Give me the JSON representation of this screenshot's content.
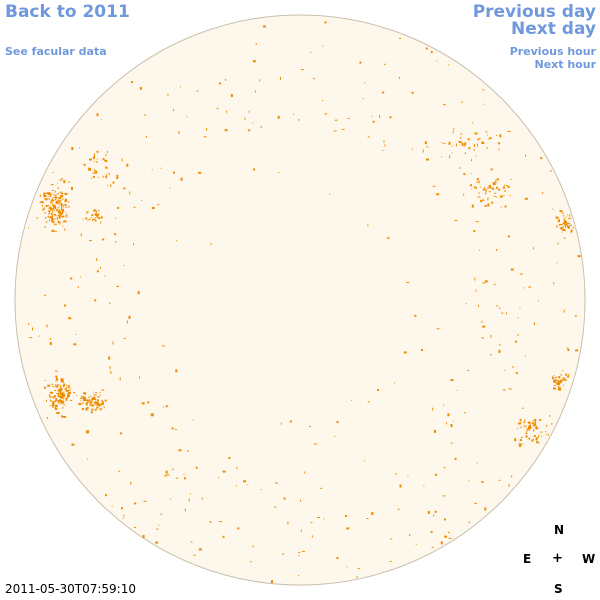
{
  "nav": {
    "back_label": "Back to 2011",
    "facular_label": "See facular data",
    "prev_day_label": "Previous day",
    "next_day_label": "Next day",
    "prev_hour_label": "Previous hour",
    "next_hour_label": "Next hour"
  },
  "compass": {
    "north": "N",
    "east": "E",
    "center": "+",
    "west": "W",
    "south": "S"
  },
  "timestamp": "2011-05-30T07:59:10",
  "colors": {
    "link": "#6f99dc",
    "disk_fill": "#fef8ec",
    "disk_outline": "#c8bfae",
    "facula": "#f08c00"
  },
  "icons": {
    "sun": "solar-disk-icon",
    "compass_center": "plus-icon"
  }
}
